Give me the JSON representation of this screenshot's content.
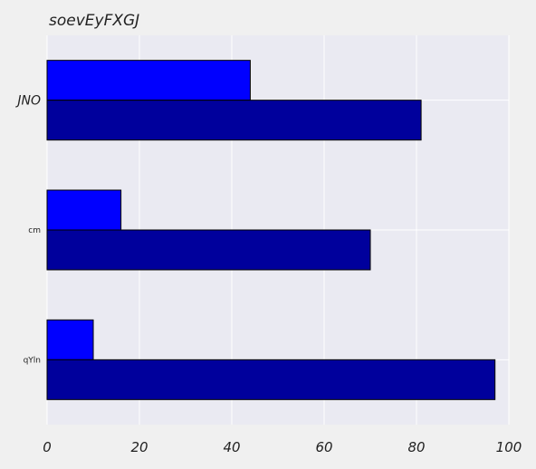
{
  "chart_data": {
    "type": "bar",
    "orientation": "horizontal",
    "title": "soevEyFXGJ",
    "categories": [
      "JNO",
      "cm",
      "qYln"
    ],
    "series": [
      {
        "values": [
          44,
          16,
          10
        ],
        "color": "#0000ff"
      },
      {
        "values": [
          81,
          70,
          97
        ],
        "color": "#00009c"
      }
    ],
    "xlim": [
      0,
      100
    ],
    "xticks": [
      "0",
      "20",
      "40",
      "60",
      "80",
      "100"
    ],
    "grid": true,
    "colors": {
      "plot_background": "#eaeaf2",
      "figure_background": "#f0f0f0",
      "grid": "#ffffff"
    }
  }
}
